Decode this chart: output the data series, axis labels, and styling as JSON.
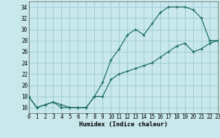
{
  "title": "",
  "xlabel": "Humidex (Indice chaleur)",
  "bg_color": "#c8e8ec",
  "grid_color": "#98c8d0",
  "line_color": "#1a6b60",
  "x_min": 0,
  "x_max": 23,
  "y_min": 15,
  "y_max": 35,
  "yticks": [
    16,
    18,
    20,
    22,
    24,
    26,
    28,
    30,
    32,
    34
  ],
  "xticks": [
    0,
    1,
    2,
    3,
    4,
    5,
    6,
    7,
    8,
    9,
    10,
    11,
    12,
    13,
    14,
    15,
    16,
    17,
    18,
    19,
    20,
    21,
    22,
    23
  ],
  "line1_x": [
    0,
    1,
    2,
    3,
    4,
    5,
    6,
    7,
    8,
    9,
    10,
    11,
    12,
    13,
    14,
    15,
    16,
    17,
    18,
    19,
    20,
    21,
    22,
    23
  ],
  "line1_y": [
    18,
    16,
    16.5,
    17,
    16,
    16,
    16,
    16,
    18,
    20.5,
    24.5,
    26.5,
    29,
    30,
    29,
    31,
    33,
    34,
    34,
    34,
    33.5,
    32,
    28,
    28
  ],
  "line2_x": [
    0,
    1,
    2,
    3,
    4,
    5,
    6,
    7,
    8,
    9,
    10,
    11,
    12,
    13,
    14,
    15,
    16,
    17,
    18,
    19,
    20,
    21,
    22,
    23
  ],
  "line2_y": [
    18,
    16,
    16.5,
    17,
    16.5,
    16,
    16,
    16,
    18,
    18,
    21,
    22,
    22.5,
    23,
    23.5,
    24,
    25,
    26,
    27,
    27.5,
    26,
    26.5,
    27.5,
    28
  ]
}
